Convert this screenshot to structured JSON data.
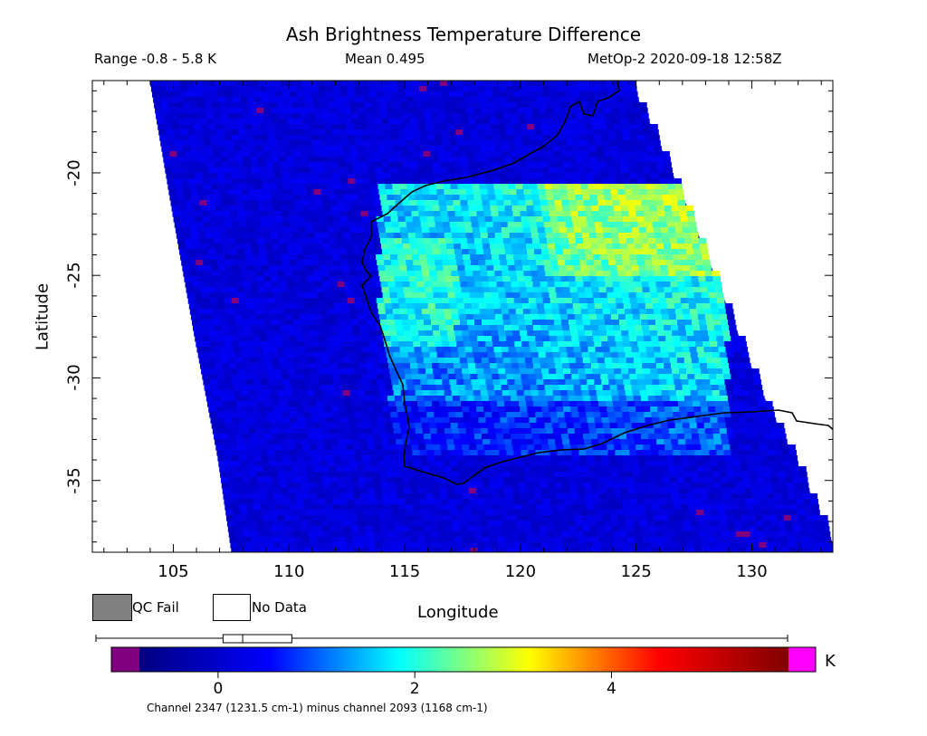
{
  "header": {
    "title": "Ash Brightness Temperature Difference",
    "range_text": "Range -0.8 - 5.8 K",
    "mean_text": "Mean 0.495",
    "sat_text": "MetOp-2 2020-09-18 12:58Z"
  },
  "axes": {
    "xlabel": "Longitude",
    "ylabel": "Latitude",
    "xticks": [
      "105",
      "110",
      "115",
      "120",
      "125",
      "130"
    ],
    "yticks": [
      "-20",
      "-25",
      "-30",
      "-35"
    ],
    "lon_range": [
      101.5,
      133.5
    ],
    "lat_range": [
      -38.5,
      -15.5
    ]
  },
  "legend": {
    "qc_fail": "QC Fail",
    "no_data": "No Data",
    "qc_fail_color": "#808080",
    "no_data_color": "#ffffff"
  },
  "colorbar": {
    "unit": "K",
    "ticks": [
      "0",
      "2",
      "4"
    ],
    "range": [
      -0.8,
      5.8
    ],
    "under_color": "#800080",
    "over_color": "#ff00ff",
    "colors": [
      "#000080",
      "#0000ff",
      "#00ffff",
      "#ffff00",
      "#ff0000",
      "#800000"
    ],
    "boxplot": {
      "min": -0.8,
      "q1": 0.05,
      "median": 0.25,
      "q3": 0.75,
      "max": 5.8
    }
  },
  "footnote": "Channel 2347 (1231.5 cm-1) minus channel 2093 (1168 cm-1)"
}
